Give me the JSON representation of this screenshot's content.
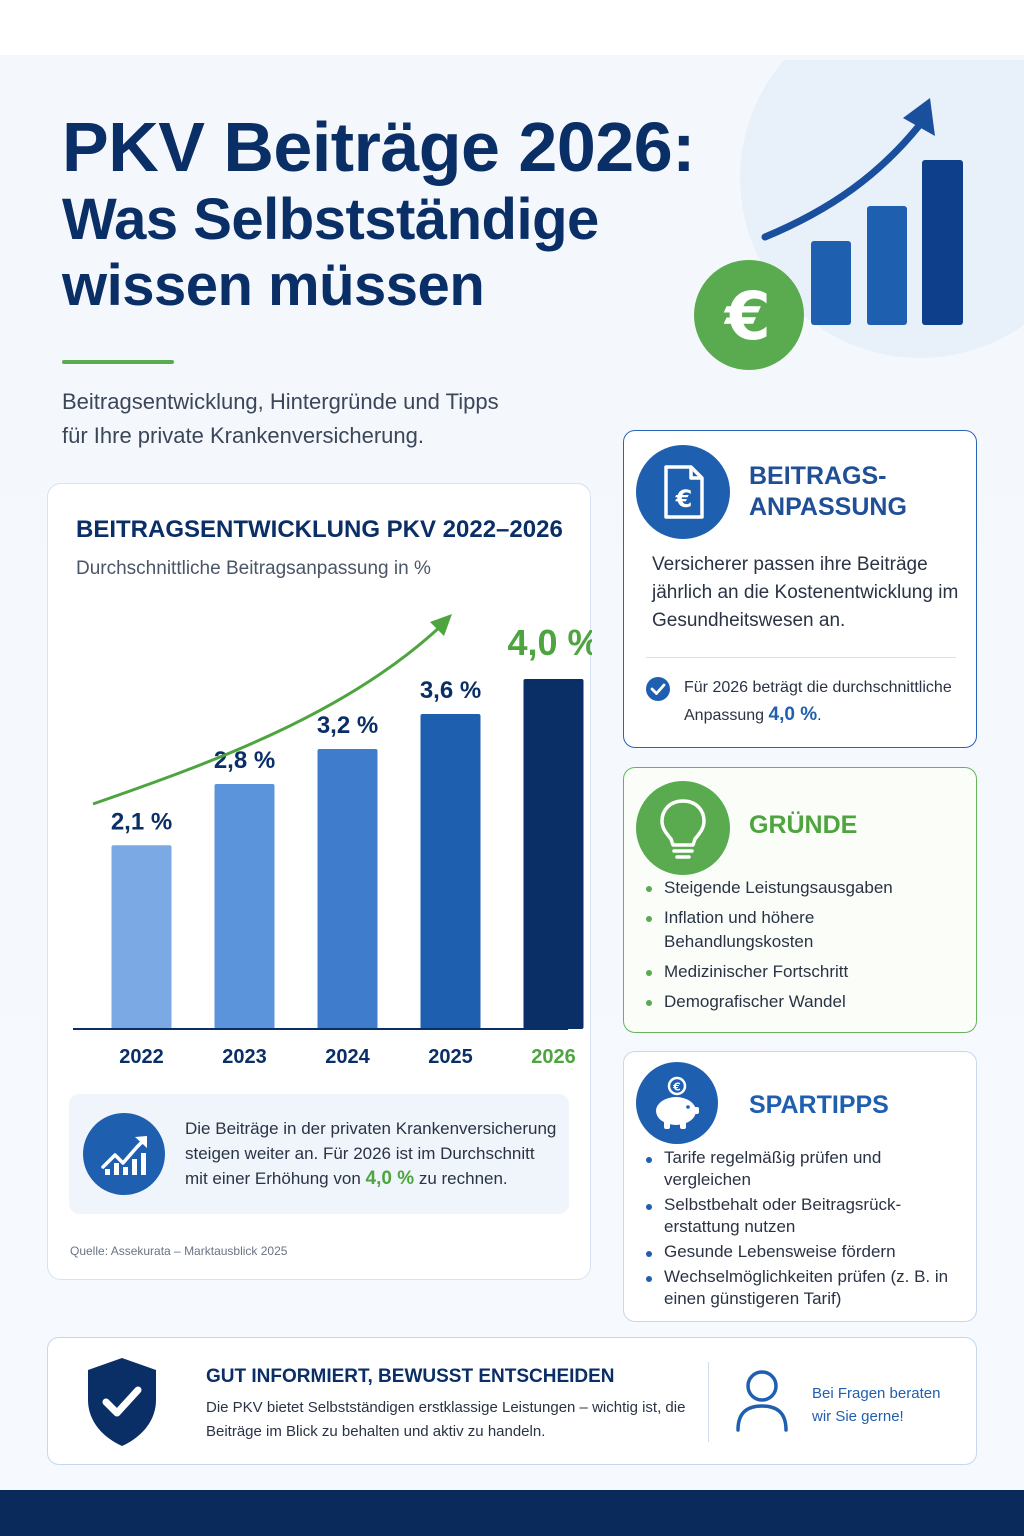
{
  "hero": {
    "title_line1": "PKV Beiträge 2026:",
    "title_line2": "Was Selbstständige",
    "title_line3": "wissen müssen",
    "subtitle_line1": "Beitragsentwicklung, Hintergründe und Tipps",
    "subtitle_line2": "für Ihre private Krankenversicherung.",
    "euro_symbol": "€"
  },
  "chart_data": {
    "type": "bar",
    "title": "BEITRAGSENTWICKLUNG PKV 2022–2026",
    "subtitle": "Durchschnittliche Beitragsanpassung in %",
    "categories": [
      "2022",
      "2023",
      "2024",
      "2025",
      "2026"
    ],
    "values": [
      2.1,
      2.8,
      3.2,
      3.6,
      4.0
    ],
    "labels": [
      "2,1 %",
      "2,8 %",
      "3,2 %",
      "3,6 %",
      "4,0 %"
    ],
    "ylim": [
      0,
      4.4
    ],
    "trend_arrow": true,
    "bar_colors": [
      "#7aa9e4",
      "#5b94db",
      "#3f7ccb",
      "#1f5fb0",
      "#0a2e66"
    ],
    "highlight_color": "#4ea43f"
  },
  "chart_note": {
    "text_before": "Die Beiträge in der privaten Krankenversicherung steigen weiter an. Für 2026 ist im Durchschnitt mit einer Erhöhung von ",
    "highlight": "4,0 %",
    "text_after": " zu rechnen.",
    "source": "Quelle: Assekurata – Marktausblick 2025"
  },
  "card_adjustment": {
    "heading_line1": "BEITRAGS-",
    "heading_line2": "ANPASSUNG",
    "body": "Versicherer passen ihre Beiträge jährlich an die Kostenentwicklung im Gesundheitswesen an.",
    "foot_before": "Für 2026 beträgt die durchschnittliche Anpassung ",
    "foot_highlight": "4,0 %",
    "foot_after": "."
  },
  "card_reasons": {
    "heading": "GRÜNDE",
    "items": [
      "Steigende Leistungsausgaben",
      "Inflation und höhere Behandlungskosten",
      "Medizinischer Fortschritt",
      "Demografischer Wandel"
    ]
  },
  "card_tips": {
    "heading": "SPARTIPPS",
    "items": [
      "Tarife regelmäßig prüfen und vergleichen",
      "Selbstbehalt oder Beitragsrück-erstattung nutzen",
      "Gesunde Lebensweise fördern",
      "Wechselmöglichkeiten prüfen (z. B. in einen günstigeren Tarif)"
    ],
    "coin_symbol": "€"
  },
  "banner": {
    "heading": "GUT INFORMIERT, BEWUSST ENTSCHEIDEN",
    "text": "Die PKV bietet Selbstständigen erstklassige Leistungen – wichtig ist, die Beiträge im Blick zu behalten und aktiv zu handeln.",
    "ask": "Bei Fragen beraten wir Sie gerne!"
  },
  "colors": {
    "navy": "#0a2e66",
    "blue": "#1f5fb0",
    "green": "#5aab4f"
  }
}
